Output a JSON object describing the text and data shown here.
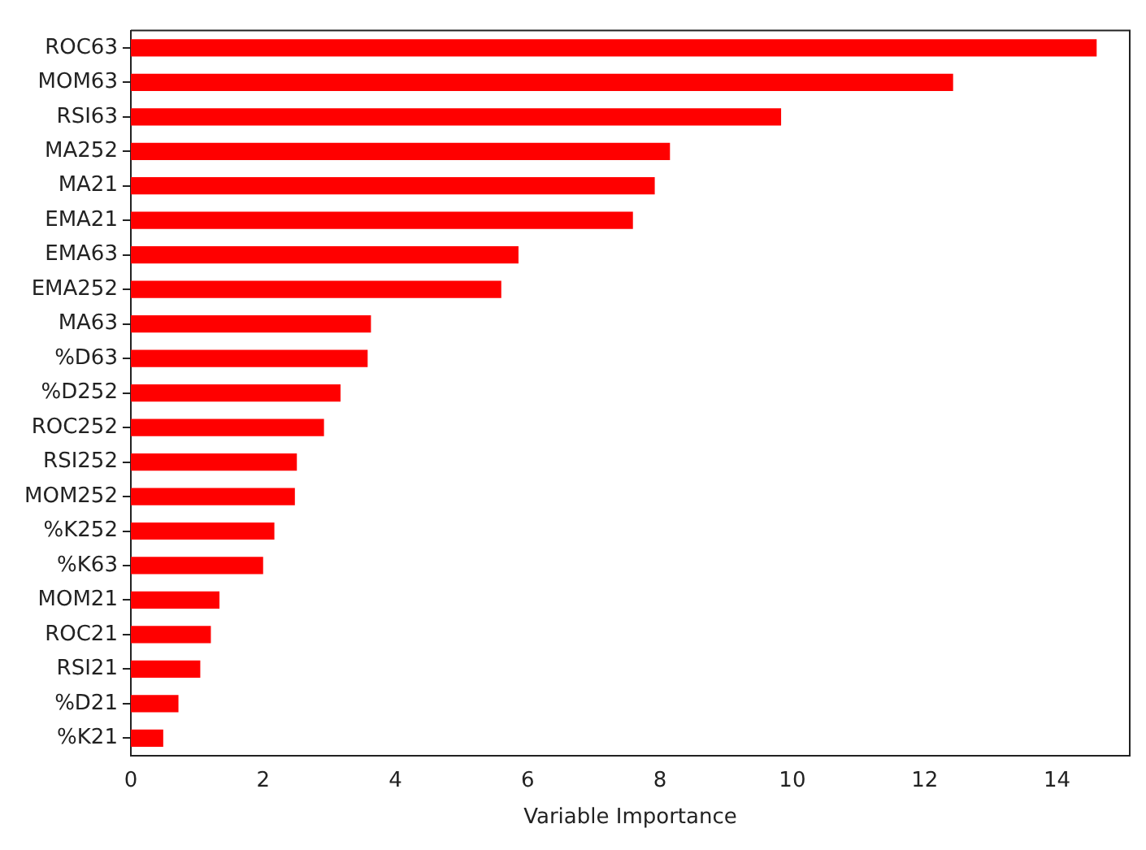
{
  "chart_data": {
    "type": "bar",
    "orientation": "horizontal",
    "xlabel": "Variable Importance",
    "categories": [
      "ROC63",
      "MOM63",
      "RSI63",
      "MA252",
      "MA21",
      "EMA21",
      "EMA63",
      "EMA252",
      "MA63",
      "%D63",
      "%D252",
      "ROC252",
      "RSI252",
      "MOM252",
      "%K252",
      "%K63",
      "MOM21",
      "ROC21",
      "RSI21",
      "%D21",
      "%K21"
    ],
    "values": [
      14.6,
      12.43,
      9.83,
      8.15,
      7.92,
      7.59,
      5.86,
      5.6,
      3.63,
      3.58,
      3.17,
      2.92,
      2.51,
      2.48,
      2.17,
      2.0,
      1.34,
      1.21,
      1.05,
      0.72,
      0.49
    ],
    "color": "#ff0000",
    "xlim": [
      0,
      15.1
    ],
    "xticks": [
      0,
      2,
      4,
      6,
      8,
      10,
      12,
      14
    ],
    "grid": false,
    "legend": false
  }
}
